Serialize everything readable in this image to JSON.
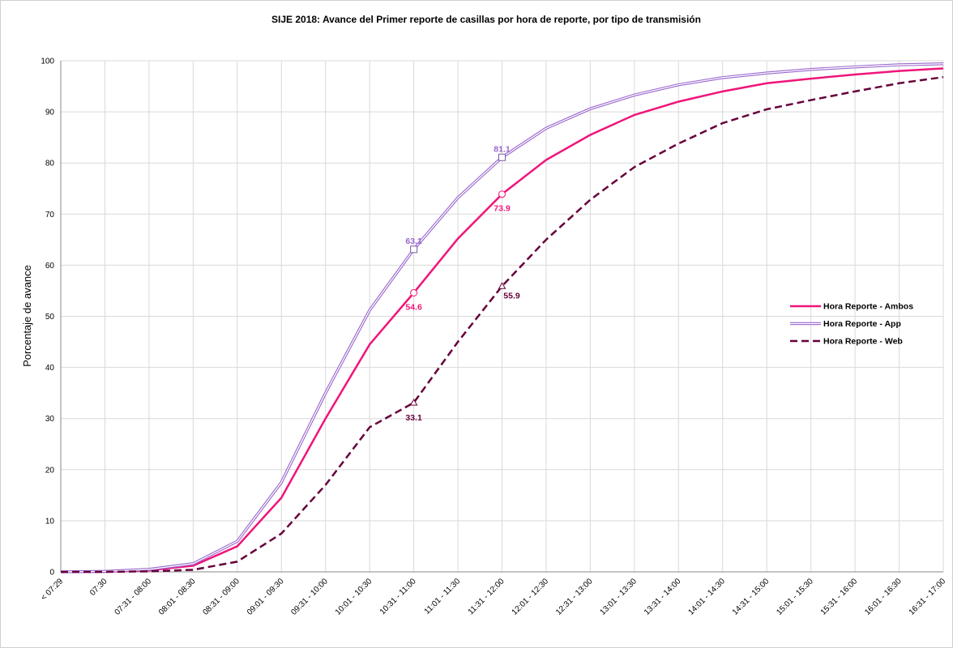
{
  "chart_data": {
    "type": "line",
    "title": "SIJE 2018: Avance del Primer reporte de casillas por hora de reporte, por tipo de transmisión",
    "y_label": "Porcentaje de avance",
    "categories": [
      "< 07:29",
      "07:30",
      "07:31 - 08:00",
      "08:01 - 08:30",
      "08:31 - 09:00",
      "09:01 - 09:30",
      "09:31 - 10:00",
      "10:01 - 10:30",
      "10:31 - 11:00",
      "11:01 - 11:30",
      "11:31 - 12:00",
      "12:01 - 12:30",
      "12:31 - 13:00",
      "13:01 - 13:30",
      "13:31 - 14:00",
      "14:01 - 14:30",
      "14:31 - 15:00",
      "15:01 - 15:30",
      "15:31 - 16:00",
      "16:01 - 16:30",
      "16:31 - 17:00"
    ],
    "series": [
      {
        "name": "Hora Reporte - Ambos",
        "color": "#f0147a",
        "style": "solid",
        "marker": "circle",
        "values": [
          0,
          0,
          0.3,
          1.2,
          5,
          14.5,
          30,
          44.5,
          54.6,
          65.2,
          73.9,
          80.6,
          85.5,
          89.4,
          92,
          94,
          95.6,
          96.5,
          97.3,
          98,
          98.5
        ],
        "value_labels": [
          null,
          null,
          null,
          null,
          null,
          null,
          null,
          null,
          "54.6",
          null,
          "73.9",
          null,
          null,
          null,
          null,
          null,
          null,
          null,
          null,
          null,
          null
        ]
      },
      {
        "name": "Hora Reporte - App",
        "color": "#9966cc",
        "style": "double",
        "marker": "square",
        "values": [
          0,
          0.1,
          0.5,
          1.6,
          6,
          17.5,
          35,
          51.2,
          63.1,
          73.2,
          81.1,
          86.8,
          90.6,
          93.3,
          95.3,
          96.7,
          97.6,
          98.3,
          98.8,
          99.2,
          99.4
        ],
        "value_labels": [
          null,
          null,
          null,
          null,
          null,
          null,
          null,
          null,
          "63.1",
          null,
          "81.1",
          null,
          null,
          null,
          null,
          null,
          null,
          null,
          null,
          null,
          null
        ]
      },
      {
        "name": "Hora Reporte - Web",
        "color": "#66003a",
        "style": "dashed",
        "marker": "triangle",
        "values": [
          0,
          0,
          0.1,
          0.4,
          2,
          7.5,
          17,
          28.3,
          33.1,
          45,
          55.9,
          65,
          72.8,
          79.2,
          83.8,
          87.8,
          90.5,
          92.3,
          94,
          95.6,
          96.8
        ],
        "value_labels": [
          null,
          null,
          null,
          null,
          null,
          null,
          null,
          null,
          "33.1",
          null,
          "55.9",
          null,
          null,
          null,
          null,
          null,
          null,
          null,
          null,
          null,
          null
        ]
      }
    ],
    "ylim": [
      0,
      100
    ],
    "yticks": [
      0,
      10,
      20,
      30,
      40,
      50,
      60,
      70,
      80,
      90,
      100
    ],
    "grid": true,
    "legend": "right"
  }
}
